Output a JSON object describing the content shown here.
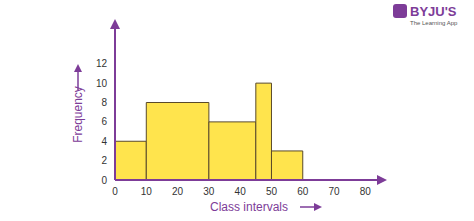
{
  "chart_data": {
    "type": "histogram",
    "x_label": "Class intervals",
    "y_label": "Frequency",
    "bins": [
      0,
      10,
      30,
      45,
      50,
      60
    ],
    "counts": [
      4,
      8,
      6,
      10,
      3
    ],
    "color": "#ffe44d",
    "xlim": [
      0,
      85
    ],
    "ylim": [
      0,
      16
    ],
    "xticks": [
      0,
      10,
      20,
      30,
      40,
      50,
      60,
      70,
      80
    ],
    "yticks": [
      0,
      2,
      4,
      6,
      8,
      10,
      12
    ],
    "grid": false,
    "annotations": [
      "BYJU'S",
      "The Learning App"
    ]
  }
}
